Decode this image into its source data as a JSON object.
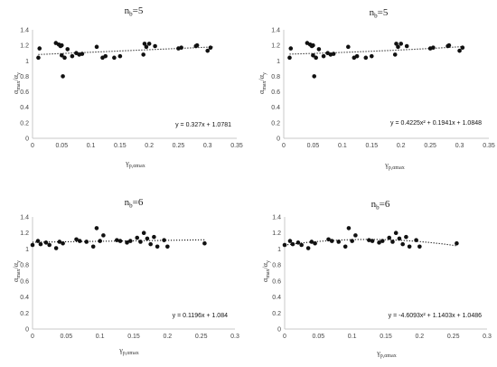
{
  "chart_data": [
    {
      "type": "scatter",
      "title_main": "n",
      "title_sub": "b",
      "title_rest": "=5",
      "xlabel_main": "γ",
      "xlabel_sub": "p,αmax",
      "ylabel_main": "α",
      "ylabel_sub": "max",
      "ylabel_mid": "/α",
      "ylabel_sub2": "y",
      "xlim": [
        0,
        0.35
      ],
      "ylim": [
        0,
        1.4
      ],
      "xticks": [
        "0",
        "0.05",
        "0.1",
        "0.15",
        "0.2",
        "0.25",
        "0.3",
        "0.35"
      ],
      "yticks": [
        "0",
        "0.2",
        "0.4",
        "0.6",
        "0.8",
        "1",
        "1.2",
        "1.4"
      ],
      "trendline": {
        "kind": "linear",
        "coeffs": [
          0.327,
          1.0781
        ],
        "x_range": [
          0.01,
          0.31
        ]
      },
      "equation": "y = 0.327x + 1.0781",
      "points": [
        [
          0.01,
          1.04
        ],
        [
          0.012,
          1.16
        ],
        [
          0.04,
          1.23
        ],
        [
          0.045,
          1.21
        ],
        [
          0.048,
          1.19
        ],
        [
          0.05,
          1.2
        ],
        [
          0.05,
          1.07
        ],
        [
          0.052,
          0.8
        ],
        [
          0.055,
          1.04
        ],
        [
          0.06,
          1.15
        ],
        [
          0.068,
          1.06
        ],
        [
          0.075,
          1.1
        ],
        [
          0.08,
          1.08
        ],
        [
          0.085,
          1.09
        ],
        [
          0.11,
          1.18
        ],
        [
          0.12,
          1.04
        ],
        [
          0.125,
          1.06
        ],
        [
          0.14,
          1.04
        ],
        [
          0.15,
          1.06
        ],
        [
          0.19,
          1.08
        ],
        [
          0.192,
          1.22
        ],
        [
          0.195,
          1.18
        ],
        [
          0.2,
          1.22
        ],
        [
          0.21,
          1.19
        ],
        [
          0.25,
          1.16
        ],
        [
          0.255,
          1.17
        ],
        [
          0.28,
          1.19
        ],
        [
          0.282,
          1.2
        ],
        [
          0.3,
          1.13
        ],
        [
          0.305,
          1.17
        ]
      ]
    },
    {
      "type": "scatter",
      "title_main": "n",
      "title_sub": "b",
      "title_rest": "=5",
      "xlabel_main": "γ",
      "xlabel_sub": "p,αmax",
      "ylabel_main": "α",
      "ylabel_sub": "max",
      "ylabel_mid": "/α",
      "ylabel_sub2": "y",
      "xlim": [
        0,
        0.35
      ],
      "ylim": [
        0,
        1.4
      ],
      "xticks": [
        "0",
        "0.05",
        "0.1",
        "0.15",
        "0.2",
        "0.25",
        "0.3",
        "0.35"
      ],
      "yticks": [
        "0",
        "0.2",
        "0.4",
        "0.6",
        "0.8",
        "1",
        "1.2",
        "1.4"
      ],
      "trendline": {
        "kind": "quadratic",
        "coeffs": [
          0.4225,
          0.1941,
          1.0848
        ],
        "x_range": [
          0.01,
          0.31
        ]
      },
      "equation": "y = 0.4225x² + 0.1941x + 1.0848",
      "points": [
        [
          0.01,
          1.04
        ],
        [
          0.012,
          1.16
        ],
        [
          0.04,
          1.23
        ],
        [
          0.045,
          1.21
        ],
        [
          0.048,
          1.19
        ],
        [
          0.05,
          1.2
        ],
        [
          0.05,
          1.07
        ],
        [
          0.052,
          0.8
        ],
        [
          0.055,
          1.04
        ],
        [
          0.06,
          1.15
        ],
        [
          0.068,
          1.06
        ],
        [
          0.075,
          1.1
        ],
        [
          0.08,
          1.08
        ],
        [
          0.085,
          1.09
        ],
        [
          0.11,
          1.18
        ],
        [
          0.12,
          1.04
        ],
        [
          0.125,
          1.06
        ],
        [
          0.14,
          1.04
        ],
        [
          0.15,
          1.06
        ],
        [
          0.19,
          1.08
        ],
        [
          0.192,
          1.22
        ],
        [
          0.195,
          1.18
        ],
        [
          0.2,
          1.22
        ],
        [
          0.21,
          1.19
        ],
        [
          0.25,
          1.16
        ],
        [
          0.255,
          1.17
        ],
        [
          0.28,
          1.19
        ],
        [
          0.282,
          1.2
        ],
        [
          0.3,
          1.13
        ],
        [
          0.305,
          1.17
        ]
      ]
    },
    {
      "type": "scatter",
      "title_main": "n",
      "title_sub": "b",
      "title_rest": "=6",
      "xlabel_main": "γ",
      "xlabel_sub": "p,αmax",
      "ylabel_main": "α",
      "ylabel_sub": "max",
      "ylabel_mid": "/α",
      "ylabel_sub2": "y",
      "xlim": [
        0,
        0.3
      ],
      "ylim": [
        0,
        1.4
      ],
      "xticks": [
        "0",
        "0.05",
        "0.1",
        "0.15",
        "0.2",
        "0.25",
        "0.3"
      ],
      "yticks": [
        "0",
        "0.2",
        "0.4",
        "0.6",
        "0.8",
        "1",
        "1.2",
        "1.4"
      ],
      "trendline": {
        "kind": "linear",
        "coeffs": [
          0.1196,
          1.084
        ],
        "x_range": [
          0.0,
          0.255
        ]
      },
      "equation": "y = 0.1196x + 1.084",
      "points": [
        [
          0.0,
          1.05
        ],
        [
          0.008,
          1.1
        ],
        [
          0.012,
          1.06
        ],
        [
          0.02,
          1.08
        ],
        [
          0.025,
          1.05
        ],
        [
          0.035,
          1.01
        ],
        [
          0.04,
          1.09
        ],
        [
          0.045,
          1.07
        ],
        [
          0.065,
          1.12
        ],
        [
          0.07,
          1.1
        ],
        [
          0.08,
          1.09
        ],
        [
          0.09,
          1.03
        ],
        [
          0.095,
          1.26
        ],
        [
          0.1,
          1.1
        ],
        [
          0.105,
          1.17
        ],
        [
          0.125,
          1.11
        ],
        [
          0.13,
          1.1
        ],
        [
          0.14,
          1.08
        ],
        [
          0.145,
          1.1
        ],
        [
          0.155,
          1.14
        ],
        [
          0.16,
          1.09
        ],
        [
          0.165,
          1.2
        ],
        [
          0.17,
          1.13
        ],
        [
          0.175,
          1.06
        ],
        [
          0.18,
          1.15
        ],
        [
          0.185,
          1.03
        ],
        [
          0.195,
          1.11
        ],
        [
          0.2,
          1.03
        ],
        [
          0.255,
          1.07
        ]
      ]
    },
    {
      "type": "scatter",
      "title_main": "n",
      "title_sub": "b",
      "title_rest": "=6",
      "xlabel_main": "γ",
      "xlabel_sub": "p,αmax",
      "ylabel_main": "α",
      "ylabel_sub": "max",
      "ylabel_mid": "/α",
      "ylabel_sub2": "y",
      "xlim": [
        0,
        0.3
      ],
      "ylim": [
        0,
        1.4
      ],
      "xticks": [
        "0",
        "0.05",
        "0.1",
        "0.15",
        "0.2",
        "0.25",
        "0.3"
      ],
      "yticks": [
        "0",
        "0.2",
        "0.4",
        "0.6",
        "0.8",
        "1",
        "1.2",
        "1.4"
      ],
      "trendline": {
        "kind": "quadratic",
        "coeffs": [
          -4.6093,
          1.1403,
          1.0486
        ],
        "x_range": [
          0.0,
          0.255
        ]
      },
      "equation": "y = -4.6093x² + 1.1403x + 1.0486",
      "points": [
        [
          0.0,
          1.05
        ],
        [
          0.008,
          1.1
        ],
        [
          0.012,
          1.06
        ],
        [
          0.02,
          1.08
        ],
        [
          0.025,
          1.05
        ],
        [
          0.035,
          1.01
        ],
        [
          0.04,
          1.09
        ],
        [
          0.045,
          1.07
        ],
        [
          0.065,
          1.12
        ],
        [
          0.07,
          1.1
        ],
        [
          0.08,
          1.09
        ],
        [
          0.09,
          1.03
        ],
        [
          0.095,
          1.26
        ],
        [
          0.1,
          1.1
        ],
        [
          0.105,
          1.17
        ],
        [
          0.125,
          1.11
        ],
        [
          0.13,
          1.1
        ],
        [
          0.14,
          1.08
        ],
        [
          0.145,
          1.1
        ],
        [
          0.155,
          1.14
        ],
        [
          0.16,
          1.09
        ],
        [
          0.165,
          1.2
        ],
        [
          0.17,
          1.13
        ],
        [
          0.175,
          1.06
        ],
        [
          0.18,
          1.15
        ],
        [
          0.185,
          1.03
        ],
        [
          0.195,
          1.11
        ],
        [
          0.2,
          1.03
        ],
        [
          0.255,
          1.07
        ]
      ]
    }
  ]
}
